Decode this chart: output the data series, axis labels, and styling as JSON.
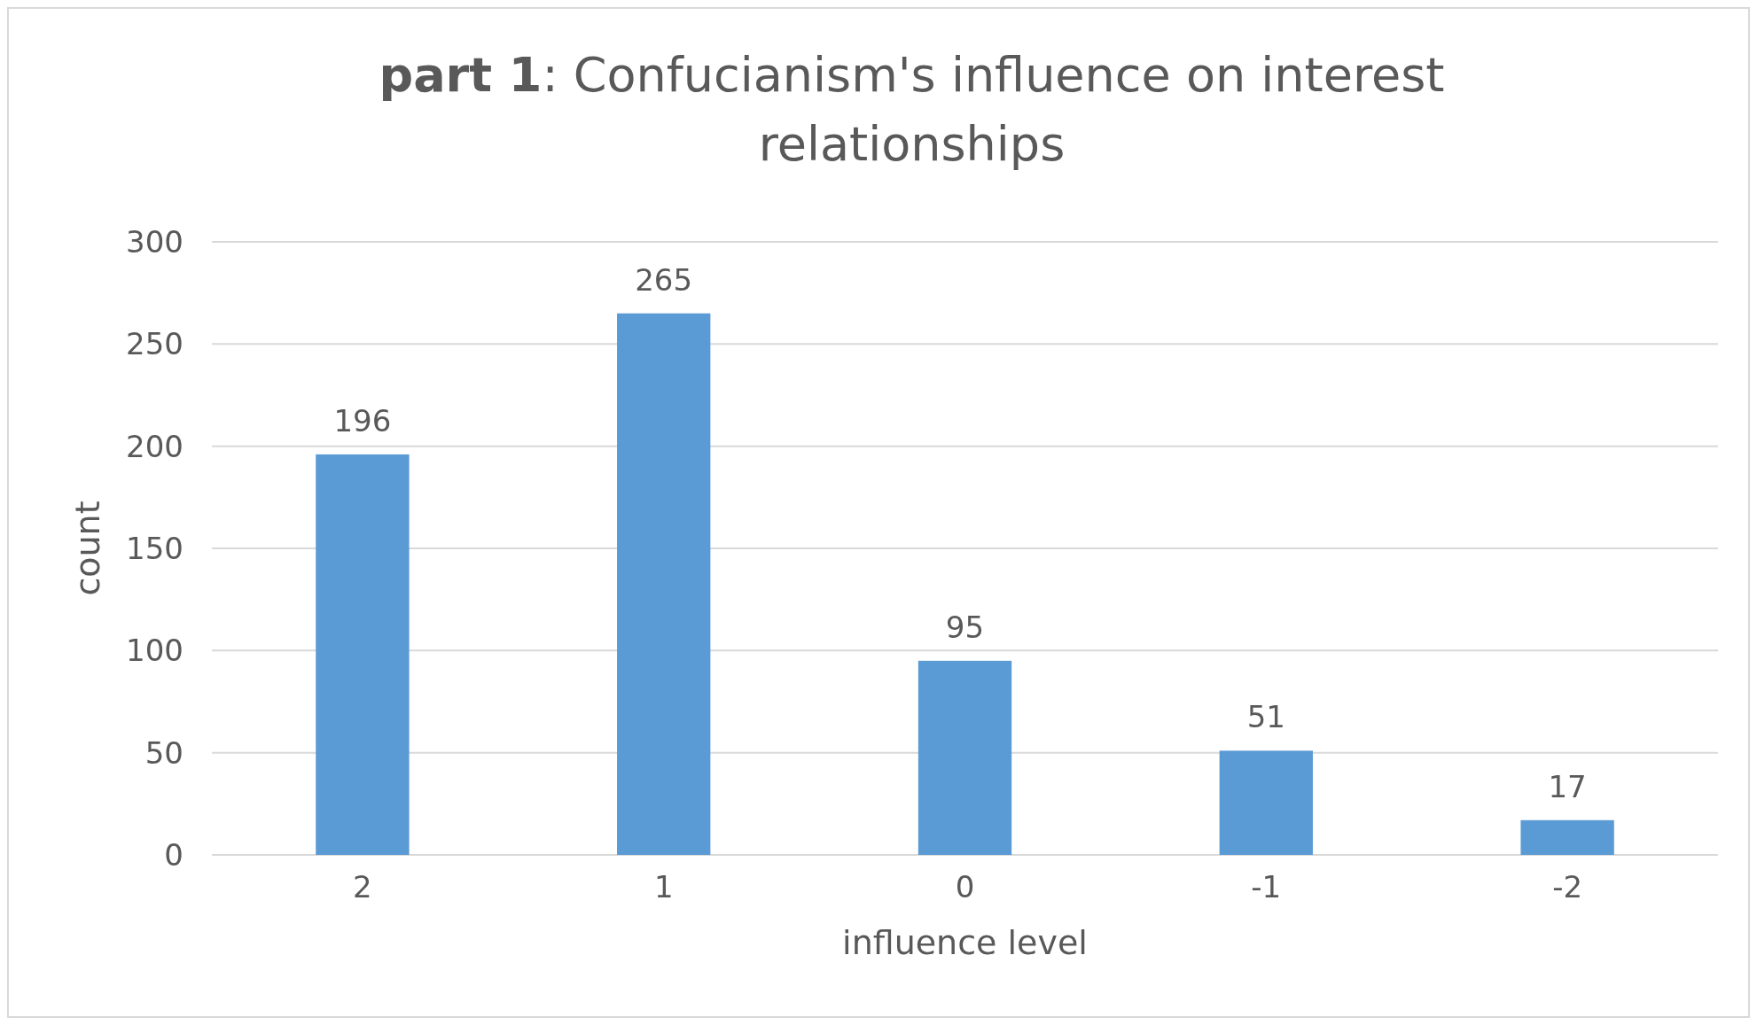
{
  "chart_data": {
    "type": "bar",
    "title": "part 1: Confucianism's influence on interest relationships",
    "xlabel": "influence level",
    "ylabel": "count",
    "categories": [
      "2",
      "1",
      "0",
      "-1",
      "-2"
    ],
    "values": [
      196,
      265,
      95,
      51,
      17
    ],
    "color": "#5b9bd5",
    "ylim": [
      0,
      300
    ],
    "yticks": [
      0,
      50,
      100,
      150,
      200,
      250,
      300
    ],
    "grid": "y",
    "data_labels": true
  }
}
